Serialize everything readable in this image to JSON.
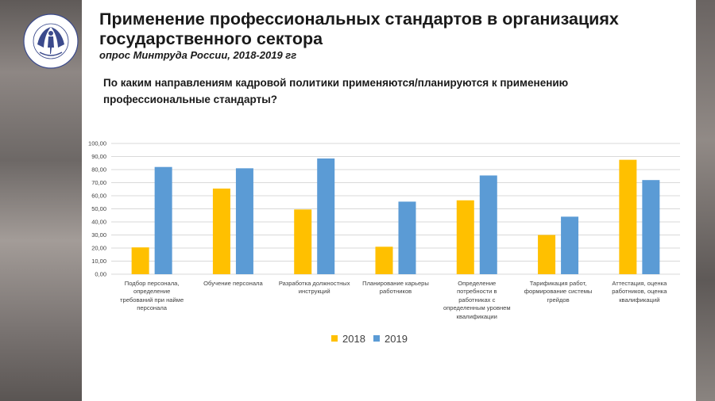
{
  "title": "Применение профессиональных стандартов в организациях государственного сектора",
  "subtitle": "опрос Минтруда России, 2018-2019 гг",
  "question": "По каким направлениям кадровой политики применяются/планируются к применению профессиональные стандарты?",
  "logo": {
    "arc_text": "ВСЕРОССИЙСКИЙ НАУЧНО-ИССЛЕДОВАТЕЛЬСКИЙ ИНСТИТУТ ТРУДА",
    "bottom_text": "МИНТРУДА РОССИИ"
  },
  "colors": {
    "2018": "#ffc000",
    "2019": "#5b9bd5",
    "grid": "#d9d9d9",
    "text": "#404040"
  },
  "chart_data": {
    "type": "bar",
    "categories": [
      "Подбор персонала, определение требований при найме персонала",
      "Обучение персонала",
      "Разработка должностных инструкций",
      "Планирование карьеры работников",
      "Определение потребности в работниках с определенным уровнем квалификации",
      "Тарификация работ, формирование системы грейдов",
      "Аттестация, оценка работников, оценка квалификаций"
    ],
    "category_lines": [
      [
        "Подбор персонала,",
        "определение",
        "требований при найме",
        "персонала"
      ],
      [
        "Обучение персонала"
      ],
      [
        "Разработка должностных",
        "инструкций"
      ],
      [
        "Планирование карьеры",
        "работников"
      ],
      [
        "Определение",
        "потребности в",
        "работниках с",
        "определенным уровнем",
        "квалификации"
      ],
      [
        "Тарификация работ,",
        "формирование системы",
        "грейдов"
      ],
      [
        "Аттестация, оценка",
        "работников, оценка",
        "квалификаций"
      ]
    ],
    "series": [
      {
        "name": "2018",
        "values": [
          20.5,
          65.5,
          49.5,
          21,
          56.5,
          30,
          87.5
        ]
      },
      {
        "name": "2019",
        "values": [
          82,
          81,
          88.5,
          55.5,
          75.5,
          44,
          72
        ]
      }
    ],
    "yticks": [
      "100,00",
      "90,00",
      "80,00",
      "70,00",
      "60,00",
      "50,00",
      "40,00",
      "30,00",
      "20,00",
      "10,00",
      "0,00"
    ],
    "ylim": [
      0,
      100
    ],
    "grid": true,
    "legend_position": "bottom"
  }
}
